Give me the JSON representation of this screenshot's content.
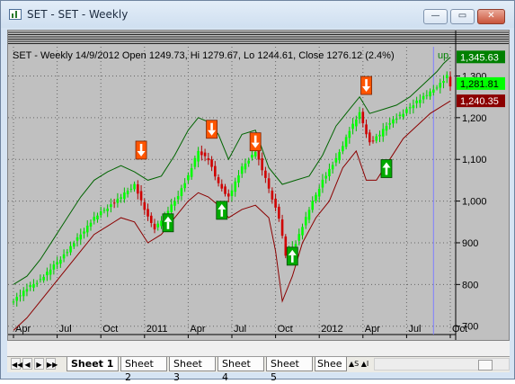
{
  "window": {
    "title": "SET - SET - Weekly",
    "minimize_glyph": "—",
    "maximize_glyph": "▭",
    "close_glyph": "✕"
  },
  "chart_header": {
    "text": "SET - Weekly 14/9/2012 Open 1249.73, Hi 1279.67, Lo 1244.61, Close 1276.12 (2.4%)",
    "trend": "up"
  },
  "colors": {
    "background": "#c0c0c0",
    "up_candle": "#00ff00",
    "down_candle": "#d00000",
    "upper_band": "#006400",
    "lower_band": "#8b0000",
    "buy_signal": "#00aa00",
    "sell_signal": "#ff5500",
    "cursor_line": "#8080ff"
  },
  "value_labels": [
    {
      "text": "1,345.63",
      "price": 1345.63,
      "bg": "#008000",
      "fg": "#ffffff"
    },
    {
      "text": "1,281.81",
      "price": 1281.81,
      "bg": "#00ff00",
      "fg": "#000000"
    },
    {
      "text": "1,240.35",
      "price": 1240.35,
      "bg": "#8b0000",
      "fg": "#ffffff"
    }
  ],
  "chart_data": {
    "type": "candlestick",
    "title": "SET - Weekly",
    "ylim": [
      680,
      1370
    ],
    "y_ticks": [
      700,
      800,
      900,
      1000,
      1100,
      1200,
      1300
    ],
    "y_tick_labels": [
      "700",
      "800",
      "900",
      "1,000",
      "1,100",
      "1,200",
      "1,300"
    ],
    "x_tick_labels": [
      "Apr",
      "Jul",
      "Oct",
      "2011",
      "Apr",
      "Jul",
      "Oct",
      "2012",
      "Apr",
      "Jul",
      "Oct"
    ],
    "x_tick_weeks": [
      0,
      13,
      26,
      39,
      52,
      65,
      78,
      91,
      104,
      117,
      130
    ],
    "grid": "dotted",
    "price": [
      [
        0,
        762
      ],
      [
        4,
        790
      ],
      [
        8,
        812
      ],
      [
        12,
        845
      ],
      [
        16,
        880
      ],
      [
        20,
        920
      ],
      [
        24,
        960
      ],
      [
        28,
        985
      ],
      [
        32,
        1010
      ],
      [
        36,
        1040
      ],
      [
        40,
        960
      ],
      [
        42,
        935
      ],
      [
        44,
        955
      ],
      [
        48,
        1000
      ],
      [
        52,
        1060
      ],
      [
        55,
        1120
      ],
      [
        58,
        1100
      ],
      [
        61,
        1040
      ],
      [
        64,
        1010
      ],
      [
        68,
        1080
      ],
      [
        72,
        1120
      ],
      [
        76,
        1030
      ],
      [
        79,
        960
      ],
      [
        81,
        870
      ],
      [
        84,
        900
      ],
      [
        88,
        980
      ],
      [
        92,
        1050
      ],
      [
        96,
        1100
      ],
      [
        100,
        1170
      ],
      [
        103,
        1210
      ],
      [
        106,
        1140
      ],
      [
        109,
        1160
      ],
      [
        112,
        1190
      ],
      [
        116,
        1210
      ],
      [
        120,
        1240
      ],
      [
        124,
        1260
      ],
      [
        128,
        1290
      ],
      [
        129,
        1300
      ],
      [
        130,
        1276
      ]
    ],
    "upper_band": [
      [
        0,
        800
      ],
      [
        4,
        820
      ],
      [
        8,
        860
      ],
      [
        12,
        910
      ],
      [
        16,
        960
      ],
      [
        20,
        1010
      ],
      [
        24,
        1050
      ],
      [
        28,
        1070
      ],
      [
        32,
        1085
      ],
      [
        36,
        1070
      ],
      [
        40,
        1050
      ],
      [
        44,
        1060
      ],
      [
        48,
        1110
      ],
      [
        52,
        1170
      ],
      [
        55,
        1200
      ],
      [
        58,
        1190
      ],
      [
        61,
        1160
      ],
      [
        64,
        1100
      ],
      [
        68,
        1160
      ],
      [
        72,
        1170
      ],
      [
        76,
        1080
      ],
      [
        80,
        1040
      ],
      [
        84,
        1050
      ],
      [
        88,
        1060
      ],
      [
        92,
        1110
      ],
      [
        96,
        1180
      ],
      [
        100,
        1220
      ],
      [
        103,
        1250
      ],
      [
        106,
        1210
      ],
      [
        110,
        1220
      ],
      [
        114,
        1230
      ],
      [
        118,
        1250
      ],
      [
        122,
        1280
      ],
      [
        126,
        1310
      ],
      [
        128,
        1330
      ],
      [
        130,
        1345
      ]
    ],
    "lower_band": [
      [
        0,
        690
      ],
      [
        4,
        720
      ],
      [
        8,
        760
      ],
      [
        12,
        800
      ],
      [
        16,
        840
      ],
      [
        20,
        880
      ],
      [
        24,
        920
      ],
      [
        28,
        940
      ],
      [
        32,
        960
      ],
      [
        36,
        950
      ],
      [
        40,
        900
      ],
      [
        44,
        920
      ],
      [
        48,
        960
      ],
      [
        52,
        1000
      ],
      [
        55,
        1020
      ],
      [
        58,
        1010
      ],
      [
        61,
        990
      ],
      [
        64,
        960
      ],
      [
        68,
        980
      ],
      [
        72,
        990
      ],
      [
        76,
        960
      ],
      [
        78,
        880
      ],
      [
        80,
        760
      ],
      [
        83,
        820
      ],
      [
        86,
        900
      ],
      [
        90,
        960
      ],
      [
        94,
        1000
      ],
      [
        98,
        1080
      ],
      [
        102,
        1120
      ],
      [
        105,
        1050
      ],
      [
        108,
        1050
      ],
      [
        112,
        1100
      ],
      [
        116,
        1150
      ],
      [
        120,
        1180
      ],
      [
        124,
        1210
      ],
      [
        128,
        1230
      ],
      [
        130,
        1240
      ]
    ],
    "sell_signals": [
      {
        "week": 38,
        "price": 1120
      },
      {
        "week": 59,
        "price": 1170
      },
      {
        "week": 72,
        "price": 1140
      },
      {
        "week": 105,
        "price": 1275
      }
    ],
    "buy_signals": [
      {
        "week": 46,
        "price": 950
      },
      {
        "week": 62,
        "price": 980
      },
      {
        "week": 83,
        "price": 870
      },
      {
        "week": 111,
        "price": 1080
      }
    ],
    "cursor_week": 125
  },
  "sheet_tabs": {
    "nav_buttons": [
      "◀◀",
      "◀",
      "▶",
      "▶▶"
    ],
    "tabs": [
      "Sheet 1",
      "Sheet 2",
      "Sheet 3",
      "Sheet 4",
      "Sheet 5",
      "Shee"
    ],
    "active_index": 0,
    "overflow_glyphs": "▲S ▲I"
  }
}
